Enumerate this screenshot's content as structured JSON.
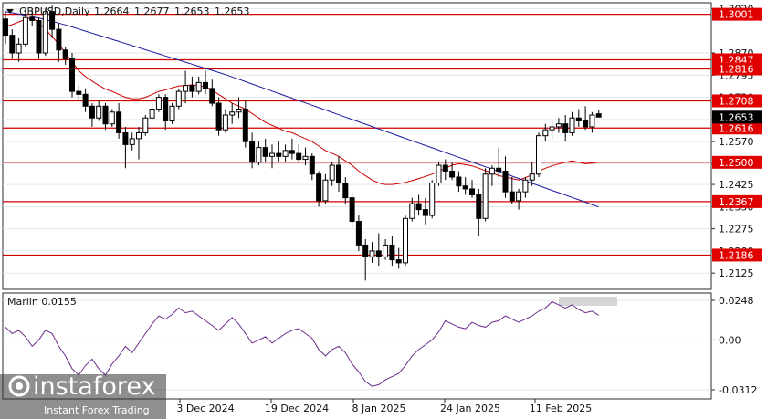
{
  "chart_data": [
    {
      "type": "candlestick",
      "title": "GBPUSD,Daily",
      "ohlc": [
        "1.2664",
        "1.2677",
        "1.2653",
        "1.2653"
      ],
      "ylim": [
        1.207,
        1.304
      ],
      "y_ticks": [
        "1.3020",
        "1.2870",
        "1.2795",
        "1.2720",
        "1.2645",
        "1.2570",
        "1.2495",
        "1.2425",
        "1.2350",
        "1.2275",
        "1.2200",
        "1.2125"
      ],
      "x_ticks": [
        "3 Dec 2024",
        "19 Dec 2024",
        "8 Jan 2025",
        "24 Jan 2025",
        "11 Feb 2025"
      ],
      "levels": [
        {
          "value": 1.3001,
          "label": "1.3001"
        },
        {
          "value": 1.2847,
          "label": "1.2847"
        },
        {
          "value": 1.2816,
          "label": "1.2816"
        },
        {
          "value": 1.2708,
          "label": "1.2708"
        },
        {
          "value": 1.2616,
          "label": "1.2616"
        },
        {
          "value": 1.25,
          "label": "1.2500"
        },
        {
          "value": 1.2367,
          "label": "1.2367"
        },
        {
          "value": 1.2186,
          "label": "1.2186"
        }
      ],
      "current_price": {
        "value": 1.2653,
        "label": "1.2653"
      },
      "candles": [
        [
          1.2985,
          1.301,
          1.29,
          1.293
        ],
        [
          1.293,
          1.295,
          1.285,
          1.287
        ],
        [
          1.287,
          1.292,
          1.284,
          1.29
        ],
        [
          1.29,
          1.302,
          1.289,
          1.299
        ],
        [
          1.299,
          1.302,
          1.296,
          1.298
        ],
        [
          1.298,
          1.299,
          1.285,
          1.287
        ],
        [
          1.287,
          1.302,
          1.286,
          1.301
        ],
        [
          1.301,
          1.303,
          1.292,
          1.295
        ],
        [
          1.295,
          1.297,
          1.284,
          1.288
        ],
        [
          1.288,
          1.289,
          1.283,
          1.285
        ],
        [
          1.285,
          1.287,
          1.272,
          1.274
        ],
        [
          1.274,
          1.276,
          1.271,
          1.273
        ],
        [
          1.273,
          1.275,
          1.267,
          1.269
        ],
        [
          1.269,
          1.27,
          1.262,
          1.265
        ],
        [
          1.265,
          1.271,
          1.264,
          1.269
        ],
        [
          1.269,
          1.27,
          1.261,
          1.263
        ],
        [
          1.263,
          1.268,
          1.262,
          1.267
        ],
        [
          1.267,
          1.27,
          1.258,
          1.26
        ],
        [
          1.26,
          1.262,
          1.248,
          1.256
        ],
        [
          1.256,
          1.26,
          1.254,
          1.258
        ],
        [
          1.258,
          1.262,
          1.251,
          1.26
        ],
        [
          1.26,
          1.266,
          1.259,
          1.265
        ],
        [
          1.265,
          1.27,
          1.264,
          1.268
        ],
        [
          1.268,
          1.273,
          1.267,
          1.272
        ],
        [
          1.272,
          1.273,
          1.261,
          1.264
        ],
        [
          1.264,
          1.27,
          1.263,
          1.269
        ],
        [
          1.269,
          1.275,
          1.268,
          1.274
        ],
        [
          1.274,
          1.281,
          1.27,
          1.276
        ],
        [
          1.276,
          1.279,
          1.272,
          1.274
        ],
        [
          1.274,
          1.279,
          1.273,
          1.277
        ],
        [
          1.277,
          1.281,
          1.273,
          1.275
        ],
        [
          1.275,
          1.278,
          1.269,
          1.27
        ],
        [
          1.27,
          1.272,
          1.259,
          1.261
        ],
        [
          1.261,
          1.268,
          1.26,
          1.266
        ],
        [
          1.266,
          1.27,
          1.263,
          1.267
        ],
        [
          1.267,
          1.272,
          1.265,
          1.268
        ],
        [
          1.268,
          1.271,
          1.255,
          1.257
        ],
        [
          1.257,
          1.26,
          1.248,
          1.25
        ],
        [
          1.25,
          1.257,
          1.249,
          1.255
        ],
        [
          1.255,
          1.258,
          1.25,
          1.252
        ],
        [
          1.252,
          1.256,
          1.248,
          1.253
        ],
        [
          1.253,
          1.257,
          1.25,
          1.252
        ],
        [
          1.252,
          1.256,
          1.25,
          1.254
        ],
        [
          1.254,
          1.258,
          1.251,
          1.253
        ],
        [
          1.253,
          1.256,
          1.25,
          1.251
        ],
        [
          1.251,
          1.255,
          1.249,
          1.252
        ],
        [
          1.252,
          1.253,
          1.244,
          1.246
        ],
        [
          1.246,
          1.247,
          1.235,
          1.237
        ],
        [
          1.237,
          1.246,
          1.236,
          1.244
        ],
        [
          1.244,
          1.25,
          1.242,
          1.249
        ],
        [
          1.249,
          1.252,
          1.24,
          1.243
        ],
        [
          1.243,
          1.245,
          1.236,
          1.238
        ],
        [
          1.238,
          1.24,
          1.228,
          1.23
        ],
        [
          1.23,
          1.232,
          1.22,
          1.222
        ],
        [
          1.222,
          1.224,
          1.21,
          1.218
        ],
        [
          1.218,
          1.223,
          1.216,
          1.22
        ],
        [
          1.22,
          1.226,
          1.215,
          1.218
        ],
        [
          1.218,
          1.224,
          1.217,
          1.222
        ],
        [
          1.222,
          1.225,
          1.215,
          1.217
        ],
        [
          1.217,
          1.221,
          1.214,
          1.216
        ],
        [
          1.216,
          1.232,
          1.215,
          1.231
        ],
        [
          1.231,
          1.238,
          1.23,
          1.236
        ],
        [
          1.236,
          1.239,
          1.232,
          1.234
        ],
        [
          1.234,
          1.238,
          1.229,
          1.232
        ],
        [
          1.232,
          1.244,
          1.231,
          1.243
        ],
        [
          1.243,
          1.25,
          1.242,
          1.249
        ],
        [
          1.249,
          1.251,
          1.244,
          1.247
        ],
        [
          1.247,
          1.25,
          1.244,
          1.245
        ],
        [
          1.245,
          1.247,
          1.24,
          1.242
        ],
        [
          1.242,
          1.245,
          1.239,
          1.241
        ],
        [
          1.241,
          1.244,
          1.238,
          1.239
        ],
        [
          1.239,
          1.241,
          1.225,
          1.231
        ],
        [
          1.231,
          1.248,
          1.23,
          1.246
        ],
        [
          1.246,
          1.249,
          1.242,
          1.248
        ],
        [
          1.248,
          1.255,
          1.245,
          1.247
        ],
        [
          1.247,
          1.252,
          1.238,
          1.24
        ],
        [
          1.24,
          1.245,
          1.236,
          1.237
        ],
        [
          1.237,
          1.241,
          1.234,
          1.24
        ],
        [
          1.24,
          1.245,
          1.238,
          1.244
        ],
        [
          1.244,
          1.25,
          1.242,
          1.246
        ],
        [
          1.246,
          1.26,
          1.245,
          1.259
        ],
        [
          1.259,
          1.263,
          1.257,
          1.261
        ],
        [
          1.261,
          1.264,
          1.258,
          1.262
        ],
        [
          1.262,
          1.265,
          1.26,
          1.263
        ],
        [
          1.263,
          1.266,
          1.257,
          1.26
        ],
        [
          1.26,
          1.267,
          1.259,
          1.265
        ],
        [
          1.265,
          1.268,
          1.262,
          1.264
        ],
        [
          1.264,
          1.269,
          1.261,
          1.262
        ],
        [
          1.262,
          1.267,
          1.26,
          1.266
        ],
        [
          1.2664,
          1.2677,
          1.2653,
          1.2653
        ]
      ],
      "series": [
        {
          "color": "#cc0000",
          "values": [
            1.296,
            1.2966,
            1.2975,
            1.2984,
            1.299,
            1.2972,
            1.295,
            1.2925,
            1.29,
            1.287,
            1.284,
            1.281,
            1.279,
            1.2775,
            1.276,
            1.2748,
            1.274,
            1.273,
            1.272,
            1.2715,
            1.2715,
            1.272,
            1.273,
            1.274,
            1.2745,
            1.2752,
            1.2758,
            1.276,
            1.2762,
            1.276,
            1.2755,
            1.2745,
            1.273,
            1.2715,
            1.27,
            1.269,
            1.268,
            1.2665,
            1.265,
            1.2635,
            1.2625,
            1.2615,
            1.2605,
            1.26,
            1.259,
            1.258,
            1.257,
            1.2555,
            1.254,
            1.253,
            1.252,
            1.2505,
            1.249,
            1.247,
            1.2455,
            1.244,
            1.243,
            1.2425,
            1.2425,
            1.2428,
            1.2432,
            1.2438,
            1.2445,
            1.2452,
            1.246,
            1.247,
            1.248,
            1.249,
            1.2495,
            1.2492,
            1.2488,
            1.248,
            1.2472,
            1.2464,
            1.2455,
            1.245,
            1.2445,
            1.244,
            1.2448,
            1.2458,
            1.247,
            1.248,
            1.2488,
            1.2494,
            1.25,
            1.2505,
            1.25,
            1.2495,
            1.2497,
            1.25
          ]
        },
        {
          "color": "#1a1aa0",
          "values": [
            1.301,
            1.3006,
            1.3002,
            1.2997,
            1.2993,
            1.2988,
            1.2983,
            1.2977,
            1.2971,
            1.2965,
            1.2958,
            1.2951,
            1.2944,
            1.2937,
            1.293,
            1.2923,
            1.2916,
            1.2909,
            1.2902,
            1.2895,
            1.2888,
            1.2881,
            1.2874,
            1.2867,
            1.286,
            1.2853,
            1.2846,
            1.2839,
            1.2832,
            1.2825,
            1.2818,
            1.2811,
            1.2804,
            1.2797,
            1.2789,
            1.2781,
            1.2773,
            1.2765,
            1.2757,
            1.2749,
            1.2741,
            1.2733,
            1.2725,
            1.2717,
            1.2709,
            1.2701,
            1.2693,
            1.2685,
            1.2677,
            1.2669,
            1.2661,
            1.2653,
            1.2645,
            1.2637,
            1.2629,
            1.2621,
            1.2613,
            1.2605,
            1.2597,
            1.2589,
            1.2581,
            1.2573,
            1.2565,
            1.2557,
            1.2549,
            1.2541,
            1.2533,
            1.2525,
            1.2517,
            1.2509,
            1.2501,
            1.2493,
            1.2485,
            1.2477,
            1.2469,
            1.2461,
            1.2453,
            1.2445,
            1.2437,
            1.2429,
            1.2421,
            1.2413,
            1.2405,
            1.2397,
            1.2389,
            1.2381,
            1.2373,
            1.2365,
            1.2357,
            1.2349
          ]
        }
      ]
    },
    {
      "type": "line",
      "title": "Marlin 0.0155",
      "ylim": [
        -0.0312,
        0.0248
      ],
      "y_ticks": [
        "0.0248",
        "0.00",
        "-0.0312"
      ],
      "series": [
        {
          "color": "#6a2c8a",
          "values": [
            0.008,
            0.004,
            0.006,
            0.002,
            -0.004,
            0.0,
            0.006,
            0.004,
            -0.004,
            -0.01,
            -0.018,
            -0.022,
            -0.016,
            -0.012,
            -0.018,
            -0.022,
            -0.015,
            -0.01,
            -0.004,
            -0.008,
            -0.002,
            0.004,
            0.01,
            0.015,
            0.013,
            0.016,
            0.02,
            0.017,
            0.018,
            0.015,
            0.012,
            0.009,
            0.006,
            0.01,
            0.014,
            0.01,
            0.004,
            -0.002,
            0.0,
            0.002,
            -0.002,
            0.001,
            0.004,
            0.006,
            0.007,
            0.004,
            0.001,
            -0.006,
            -0.01,
            -0.006,
            -0.004,
            -0.008,
            -0.015,
            -0.02,
            -0.026,
            -0.029,
            -0.028,
            -0.025,
            -0.023,
            -0.021,
            -0.016,
            -0.01,
            -0.006,
            -0.003,
            0.0,
            0.005,
            0.012,
            0.01,
            0.008,
            0.007,
            0.011,
            0.009,
            0.008,
            0.011,
            0.012,
            0.015,
            0.013,
            0.011,
            0.013,
            0.015,
            0.018,
            0.02,
            0.024,
            0.022,
            0.02,
            0.022,
            0.019,
            0.017,
            0.018,
            0.0155
          ]
        }
      ]
    }
  ],
  "watermark": {
    "brand": "instaforex",
    "tagline": "Instant Forex Trading"
  }
}
